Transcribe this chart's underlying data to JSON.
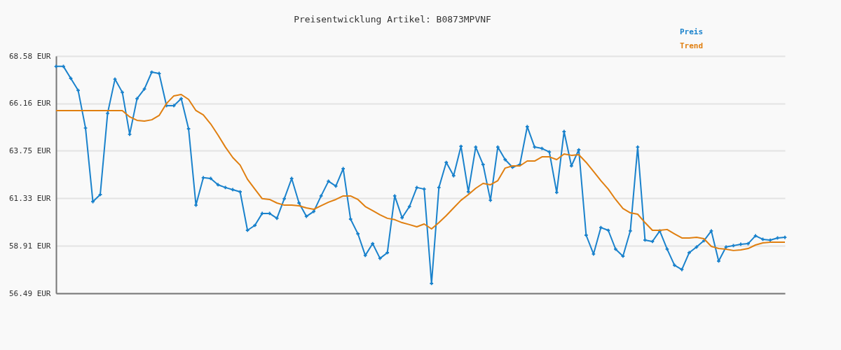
{
  "chart_data": {
    "type": "line",
    "title": "Preisentwicklung Artikel: B0873MPVNF",
    "categories": [
      null,
      null,
      null,
      null,
      null,
      null,
      null,
      null,
      null,
      null,
      null,
      null,
      null,
      null,
      null,
      null,
      null,
      null,
      null,
      null,
      null,
      null,
      null,
      null,
      null,
      null,
      null,
      null,
      null,
      null,
      null,
      null,
      null,
      null,
      null,
      null,
      null,
      null,
      null,
      null,
      null,
      null,
      null,
      null,
      null,
      null,
      null,
      null,
      null,
      null,
      null,
      null,
      null,
      null,
      null,
      null,
      null,
      null,
      null,
      null,
      null,
      null,
      null,
      null,
      null,
      null,
      null,
      null,
      null,
      null,
      null,
      null,
      null,
      null,
      null,
      null,
      null,
      null,
      null,
      null,
      null,
      null,
      null,
      null,
      null,
      null,
      null,
      null,
      null,
      null,
      null,
      null,
      null,
      null,
      null,
      null,
      null,
      null,
      null,
      null
    ],
    "series": [
      {
        "name": "Preis",
        "color": "#1a82cc",
        "marker": "cross",
        "values": [
          68.05,
          68.05,
          67.44,
          66.83,
          64.91,
          61.16,
          61.52,
          65.66,
          67.4,
          66.73,
          64.59,
          66.41,
          66.9,
          67.76,
          67.69,
          66.05,
          66.05,
          66.41,
          64.87,
          60.98,
          62.38,
          62.34,
          62.02,
          61.88,
          61.77,
          61.66,
          59.7,
          59.95,
          60.56,
          60.56,
          60.31,
          61.31,
          62.34,
          61.09,
          60.41,
          60.66,
          61.45,
          62.2,
          61.95,
          62.84,
          60.27,
          59.52,
          58.42,
          59.02,
          58.27,
          58.56,
          61.45,
          60.34,
          60.91,
          61.88,
          61.8,
          56.99,
          61.88,
          63.16,
          62.48,
          63.98,
          61.66,
          63.94,
          63.05,
          61.23,
          63.94,
          63.3,
          62.91,
          63.05,
          64.98,
          63.94,
          63.87,
          63.69,
          61.63,
          64.73,
          62.98,
          63.8,
          59.45,
          58.49,
          59.84,
          59.7,
          58.74,
          58.38,
          59.67,
          63.94,
          59.2,
          59.13,
          59.67,
          58.74,
          57.92,
          57.7,
          58.56,
          58.85,
          59.17,
          59.67,
          58.13,
          58.85,
          58.92,
          58.99,
          59.02,
          59.42,
          59.24,
          59.2,
          59.31,
          59.34
        ]
      },
      {
        "name": "Trend",
        "color": "#e07f10",
        "marker": "none",
        "values": [
          65.8,
          65.8,
          65.8,
          65.8,
          65.8,
          65.8,
          65.8,
          65.8,
          65.8,
          65.8,
          65.48,
          65.3,
          65.26,
          65.33,
          65.55,
          66.16,
          66.55,
          66.62,
          66.37,
          65.8,
          65.58,
          65.12,
          64.55,
          63.94,
          63.41,
          63.02,
          62.3,
          61.8,
          61.31,
          61.27,
          61.09,
          60.98,
          60.98,
          60.95,
          60.84,
          60.77,
          60.95,
          61.13,
          61.27,
          61.45,
          61.45,
          61.27,
          60.91,
          60.7,
          60.49,
          60.31,
          60.24,
          60.09,
          59.99,
          59.88,
          60.02,
          59.77,
          60.09,
          60.45,
          60.84,
          61.23,
          61.52,
          61.84,
          62.09,
          62.02,
          62.23,
          62.87,
          62.98,
          62.98,
          63.23,
          63.23,
          63.44,
          63.44,
          63.3,
          63.59,
          63.52,
          63.55,
          63.16,
          62.7,
          62.23,
          61.8,
          61.27,
          60.81,
          60.59,
          60.52,
          60.09,
          59.7,
          59.7,
          59.74,
          59.52,
          59.31,
          59.31,
          59.34,
          59.27,
          58.88,
          58.77,
          58.74,
          58.67,
          58.7,
          58.77,
          58.95,
          59.06,
          59.09,
          59.09,
          59.09
        ]
      }
    ],
    "ylim": [
      56.49,
      68.58
    ],
    "yticks": [
      {
        "value": 56.49,
        "label": "56.49 EUR"
      },
      {
        "value": 58.91,
        "label": "58.91 EUR"
      },
      {
        "value": 61.33,
        "label": "61.33 EUR"
      },
      {
        "value": 63.75,
        "label": "63.75 EUR"
      },
      {
        "value": 66.16,
        "label": "66.16 EUR"
      },
      {
        "value": 68.58,
        "label": "68.58 EUR"
      }
    ],
    "grid": "y",
    "legend": "top right",
    "line_style": "solid"
  }
}
